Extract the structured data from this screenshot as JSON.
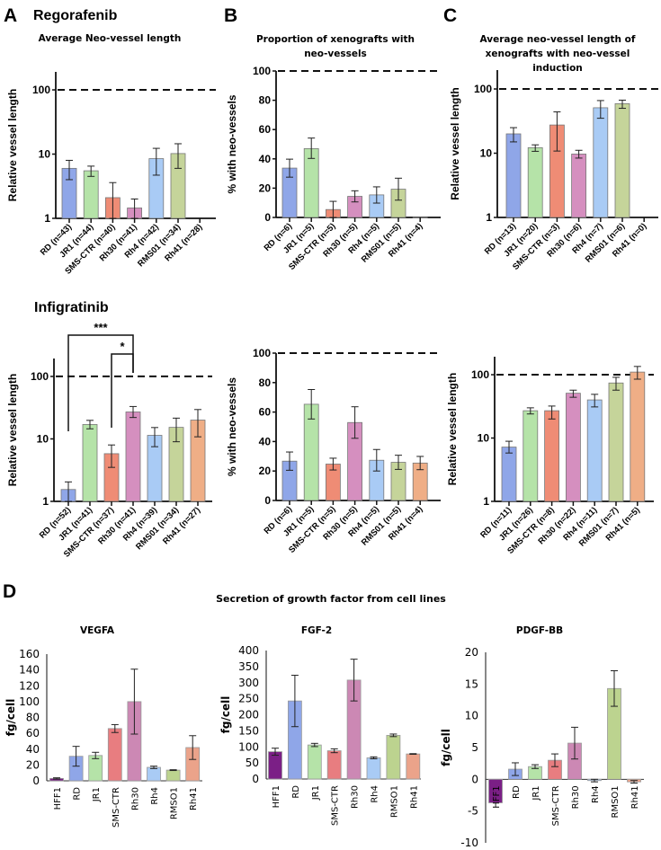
{
  "panels": {
    "A": "A",
    "B": "B",
    "C": "C",
    "D": "D",
    "regorafenib": "Regorafenib",
    "infigratinib": "Infigratinib",
    "d_title": "Secretion of growth factor from cell lines"
  },
  "chart_data": [
    {
      "id": "A-top",
      "type": "bar",
      "scale": "log",
      "title_lines": [
        "Average Neo-vessel length"
      ],
      "ylabel": "Relative vessel length",
      "ylim": [
        1,
        200
      ],
      "yticks": [
        "1",
        "10",
        "100"
      ],
      "reference_line": 100,
      "categories": [
        "RD (n=43)",
        "JR1 (n=44)",
        "SMS-CTR (n=40)",
        "Rh30 (n=41)",
        "Rh4 (n=42)",
        "RMS01 (n=34)",
        "Rh41 (n=28)"
      ],
      "values": [
        6,
        5.5,
        2.1,
        1.45,
        8.5,
        10.2,
        null
      ],
      "error_low": [
        4,
        4.5,
        1,
        1,
        4.7,
        6,
        null
      ],
      "error_high": [
        8,
        6.5,
        3.6,
        2,
        12.3,
        14.5,
        null
      ],
      "colors": [
        "#8fa6e8",
        "#b5e3a8",
        "#ef8c75",
        "#d58fbf",
        "#a9cbf5",
        "#c5d49a",
        "#efae86"
      ]
    },
    {
      "id": "B-top",
      "type": "bar",
      "scale": "linear",
      "title_lines": [
        "Proportion of xenografts with",
        "neo-vessels"
      ],
      "ylabel": "% with neo-vessels",
      "ylim": [
        0,
        100
      ],
      "yticks": [
        "0",
        "20",
        "40",
        "60",
        "80",
        "100"
      ],
      "reference_line": 100,
      "categories": [
        "RD (n=6)",
        "JR1 (n=5)",
        "SMS-CTR (n=5)",
        "Rh30 (n=5)",
        "Rh4 (n=5)",
        "RMS01 (n=5)",
        "Rh41 (n=4)"
      ],
      "values": [
        33.7,
        47,
        5.4,
        14.4,
        15.4,
        19.3,
        0
      ],
      "error_low": [
        27.5,
        40.3,
        0,
        10.6,
        9.8,
        11.8,
        0
      ],
      "error_high": [
        39.8,
        54.2,
        11,
        18.2,
        20.9,
        26.8,
        0
      ],
      "colors": [
        "#8fa6e8",
        "#b5e3a8",
        "#ef8c75",
        "#d58fbf",
        "#a9cbf5",
        "#c5d49a",
        "#efae86"
      ]
    },
    {
      "id": "C-top",
      "type": "bar",
      "scale": "log",
      "title_lines": [
        "Average neo-vessel length of",
        "xenografts with neo-vessel",
        "induction"
      ],
      "ylabel": "Relative vessel length",
      "ylim": [
        1,
        200
      ],
      "yticks": [
        "1",
        "10",
        "100"
      ],
      "reference_line": 100,
      "categories": [
        "RD (n=13)",
        "JR1 (n=20)",
        "SMS-CTR (n=3)",
        "Rh30 (n=6)",
        "Rh4 (n=7)",
        "RMS01 (n=6)",
        "Rh41 (n=0)"
      ],
      "values": [
        20,
        12.2,
        27.5,
        9.7,
        51,
        59,
        null
      ],
      "error_low": [
        15,
        10.7,
        10.8,
        8.4,
        35,
        50,
        null
      ],
      "error_high": [
        25,
        13.5,
        44,
        11.1,
        66,
        67,
        null
      ],
      "colors": [
        "#8fa6e8",
        "#b5e3a8",
        "#ef8c75",
        "#d58fbf",
        "#a9cbf5",
        "#c5d49a",
        "#efae86"
      ]
    },
    {
      "id": "A-bottom",
      "type": "bar",
      "scale": "log",
      "title_lines": [],
      "ylabel": "Relative vessel length",
      "ylim": [
        1,
        200
      ],
      "yticks": [
        "1",
        "10",
        "100"
      ],
      "reference_line": 100,
      "categories": [
        "RD (n=52)",
        "JR1 (n=41)",
        "SMS-CTR (n=37)",
        "Rh30 (n=41)",
        "Rh4 (n=39)",
        "RMS01 (n=34)",
        "Rh41 (n=27)"
      ],
      "values": [
        1.55,
        17,
        5.8,
        27,
        11.4,
        15.3,
        20
      ],
      "error_low": [
        1,
        14.5,
        3.5,
        22,
        7.5,
        9,
        10.8
      ],
      "error_high": [
        2.05,
        19.8,
        8,
        33,
        15.2,
        21.5,
        29.5
      ],
      "colors": [
        "#8fa6e8",
        "#b5e3a8",
        "#ef8c75",
        "#d58fbf",
        "#a9cbf5",
        "#c5d49a",
        "#efae86"
      ],
      "significance": [
        {
          "from": "RD (n=52)",
          "to": "Rh30 (n=41)",
          "label": "***"
        },
        {
          "from": "SMS-CTR (n=37)",
          "to": "Rh30 (n=41)",
          "label": "*"
        }
      ]
    },
    {
      "id": "B-bottom",
      "type": "bar",
      "scale": "linear",
      "title_lines": [],
      "ylabel": "% with neo-vessels",
      "ylim": [
        0,
        100
      ],
      "yticks": [
        "0",
        "20",
        "40",
        "60",
        "80",
        "100"
      ],
      "reference_line": 100,
      "categories": [
        "RD (n=6)",
        "JR1 (n=5)",
        "SMS-CTR (n=5)",
        "Rh30 (n=5)",
        "Rh4 (n=5)",
        "RMS01 (n=5)",
        "Rh41 (n=4)"
      ],
      "values": [
        26.7,
        65.3,
        24.7,
        52.9,
        27.3,
        25.9,
        25.4
      ],
      "error_low": [
        20.5,
        55.3,
        20.7,
        42.2,
        20,
        21.1,
        20.9
      ],
      "error_high": [
        32.9,
        75.3,
        28.7,
        63.6,
        34.6,
        30.7,
        29.9
      ],
      "colors": [
        "#8fa6e8",
        "#b5e3a8",
        "#ef8c75",
        "#d58fbf",
        "#a9cbf5",
        "#c5d49a",
        "#efae86"
      ]
    },
    {
      "id": "C-bottom",
      "type": "bar",
      "scale": "log",
      "title_lines": [],
      "ylabel": "Relative vessel length",
      "ylim": [
        1,
        200
      ],
      "yticks": [
        "1",
        "10",
        "100"
      ],
      "reference_line": 100,
      "categories": [
        "RD (n=11)",
        "JR1 (n=26)",
        "SMS-CTR (n=8)",
        "Rh30 (n=22)",
        "Rh4 (n=11)",
        "RMS01 (n=7)",
        "Rh41 (n=5)"
      ],
      "values": [
        7.2,
        27,
        27,
        51,
        40,
        74,
        110
      ],
      "error_low": [
        5.8,
        24,
        20,
        44,
        31,
        57,
        85
      ],
      "error_high": [
        8.9,
        30,
        32,
        57,
        49,
        91,
        135
      ],
      "colors": [
        "#8fa6e8",
        "#b5e3a8",
        "#ef8c75",
        "#d58fbf",
        "#a9cbf5",
        "#c5d49a",
        "#efae86"
      ]
    },
    {
      "id": "D-VEGFA",
      "type": "bar",
      "scale": "linear",
      "title_lines": [
        "VEGFA"
      ],
      "ylabel": "fg/cell",
      "ylim": [
        0,
        160
      ],
      "yticks": [
        "0",
        "20",
        "40",
        "60",
        "80",
        "100",
        "120",
        "140",
        "160"
      ],
      "categories": [
        "HFF1",
        "RD",
        "JR1",
        "SMS-CTR",
        "Rh30",
        "Rh4",
        "RMSO1",
        "Rh41"
      ],
      "values": [
        3,
        31,
        32,
        66,
        100,
        17,
        13.5,
        42
      ],
      "error_low": [
        2.2,
        18.5,
        28,
        61,
        59,
        15.5,
        13,
        27
      ],
      "error_high": [
        3.8,
        43.5,
        36,
        71,
        141,
        18.5,
        14,
        57
      ],
      "colors": [
        "#7b1f86",
        "#8fa6e8",
        "#b5e3a8",
        "#e87d80",
        "#cc88b4",
        "#a9cbf5",
        "#bcd38f",
        "#eba38a"
      ]
    },
    {
      "id": "D-FGF2",
      "type": "bar",
      "scale": "linear",
      "title_lines": [
        "FGF-2"
      ],
      "ylabel": "fg/cell",
      "ylim": [
        0,
        400
      ],
      "yticks": [
        "0",
        "50",
        "100",
        "150",
        "200",
        "250",
        "300",
        "350",
        "400"
      ],
      "categories": [
        "HFF1",
        "RD",
        "JR1",
        "SMS-CTR",
        "Rh30",
        "Rh4",
        "RMSO1",
        "Rh41"
      ],
      "values": [
        85,
        243,
        106,
        88,
        308,
        66,
        136,
        78
      ],
      "error_low": [
        74,
        163,
        101,
        82,
        243,
        63,
        132,
        77
      ],
      "error_high": [
        96,
        323,
        111,
        94,
        373,
        69,
        140,
        79
      ],
      "colors": [
        "#7b1f86",
        "#8fa6e8",
        "#b5e3a8",
        "#e87d80",
        "#cc88b4",
        "#a9cbf5",
        "#bcd38f",
        "#eba38a"
      ]
    },
    {
      "id": "D-PDGFBB",
      "type": "bar",
      "scale": "linear",
      "title_lines": [
        "PDGF-BB"
      ],
      "ylabel": "fg/cell",
      "ylim": [
        -10,
        20
      ],
      "yticks": [
        "-10",
        "-5",
        "0",
        "5",
        "10",
        "15",
        "20"
      ],
      "categories": [
        "HFF1",
        "RD",
        "JR1",
        "SMS-CTR",
        "Rh30",
        "Rh4",
        "RMSO1",
        "Rh41"
      ],
      "values": [
        -3.7,
        1.6,
        2,
        3,
        5.7,
        -0.2,
        14.3,
        -0.4
      ],
      "error_low": [
        -3.7,
        0.6,
        1.7,
        2,
        3.2,
        -0.4,
        11.5,
        -0.6
      ],
      "error_high": [
        -3.7,
        2.6,
        2.3,
        4,
        8.2,
        0,
        17.1,
        -0.2
      ],
      "colors": [
        "#7b1f86",
        "#8fa6e8",
        "#b5e3a8",
        "#e87d80",
        "#cc88b4",
        "#a9cbf5",
        "#bcd38f",
        "#eba38a"
      ]
    }
  ]
}
